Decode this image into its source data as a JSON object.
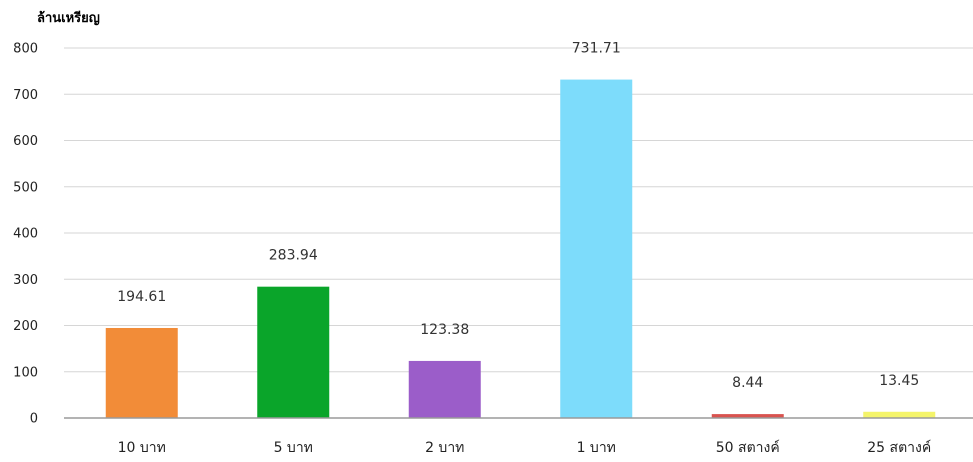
{
  "chart_data": {
    "type": "bar",
    "title": "",
    "xlabel": "",
    "ylabel": "ล้านเหรียญ",
    "ylim": [
      0,
      800
    ],
    "yticks": [
      0,
      100,
      200,
      300,
      400,
      500,
      600,
      700,
      800
    ],
    "grid": true,
    "categories": [
      "10 บาท",
      "5 บาท",
      "2 บาท",
      "1 บาท",
      "50 สตางค์",
      "25 สตางค์"
    ],
    "values": [
      194.61,
      283.94,
      123.38,
      731.71,
      8.44,
      13.45
    ],
    "value_labels": [
      "194.61",
      "283.94",
      "123.38",
      "731.71",
      "8.44",
      "13.45"
    ],
    "colors": [
      "#F28C38",
      "#0AA52A",
      "#9B5DC9",
      "#7DDCFB",
      "#D9534F",
      "#F4F46A"
    ]
  }
}
